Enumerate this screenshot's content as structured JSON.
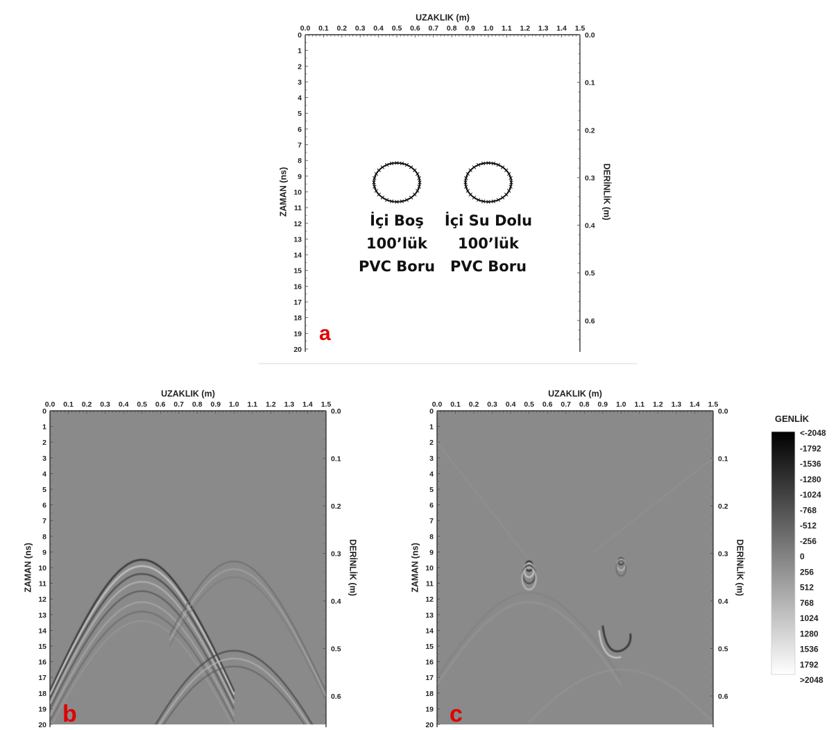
{
  "axes": {
    "x_title": "UZAKLIK (m)",
    "y_left_title": "ZAMAN (ns)",
    "y_right_title": "DERİNLİK (m)",
    "x_ticks": [
      "0.0",
      "0.1",
      "0.2",
      "0.3",
      "0.4",
      "0.5",
      "0.6",
      "0.7",
      "0.8",
      "0.9",
      "1.0",
      "1.1",
      "1.2",
      "1.3",
      "1.4",
      "1.5"
    ],
    "time_ticks": [
      "0",
      "1",
      "2",
      "3",
      "4",
      "5",
      "6",
      "7",
      "8",
      "9",
      "10",
      "11",
      "12",
      "13",
      "14",
      "15",
      "16",
      "17",
      "18",
      "19",
      "20"
    ],
    "depth_ticks": [
      "0.0",
      "0.1",
      "0.2",
      "0.3",
      "0.4",
      "0.5",
      "0.6"
    ],
    "x_range": [
      0.0,
      1.5
    ],
    "time_range": [
      0,
      20
    ],
    "depth_range": [
      0.0,
      0.66
    ]
  },
  "panels": [
    {
      "label": "a",
      "kind": "model"
    },
    {
      "label": "b",
      "kind": "radargram"
    },
    {
      "label": "c",
      "kind": "radargram"
    }
  ],
  "pipes": [
    {
      "x": 0.5,
      "time": 9.0,
      "lines": [
        "İçi Boş",
        "100’lük",
        "PVC Boru"
      ]
    },
    {
      "x": 1.0,
      "time": 9.0,
      "lines": [
        "İçi Su Dolu",
        "100’lük",
        "PVC Boru"
      ]
    }
  ],
  "colorbar": {
    "title": "GENLİK",
    "labels": [
      "<-2048",
      "-1792",
      "-1536",
      "-1280",
      "-1024",
      "-768",
      "-512",
      "-256",
      "0",
      "256",
      "512",
      "768",
      "1024",
      "1280",
      "1536",
      "1792",
      ">2048"
    ]
  },
  "colors": {
    "panel_label": "#e00000",
    "radargram_bg": "#8a8a8a"
  }
}
